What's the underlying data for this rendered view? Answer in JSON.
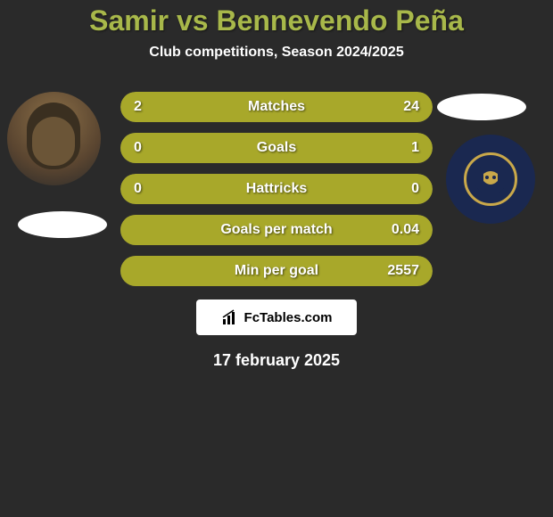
{
  "comparison": {
    "title": "Samir vs Bennevendo Peña",
    "subtitle": "Club competitions, Season 2024/2025",
    "player_left": {
      "name": "Samir",
      "avatar_bg": "#5a4530"
    },
    "player_right": {
      "name": "Bennevendo Peña",
      "club_badge_bg": "#1a2850",
      "club_badge_accent": "#c9a84a"
    },
    "stats": [
      {
        "label": "Matches",
        "left_value": "2",
        "right_value": "24",
        "left_pct": 8,
        "right_pct": 92,
        "fill_color": "#a8a82a"
      },
      {
        "label": "Goals",
        "left_value": "0",
        "right_value": "1",
        "left_pct": 0,
        "right_pct": 100,
        "fill_color": "#a8a82a"
      },
      {
        "label": "Hattricks",
        "left_value": "0",
        "right_value": "0",
        "left_pct": 100,
        "right_pct": 0,
        "fill_color": "#a8a82a"
      },
      {
        "label": "Goals per match",
        "left_value": "",
        "right_value": "0.04",
        "left_pct": 0,
        "right_pct": 100,
        "fill_color": "#a8a82a"
      },
      {
        "label": "Min per goal",
        "left_value": "",
        "right_value": "2557",
        "left_pct": 0,
        "right_pct": 100,
        "fill_color": "#a8a82a"
      }
    ],
    "watermark": "FcTables.com",
    "date": "17 february 2025",
    "colors": {
      "background": "#2a2a2a",
      "title": "#a8b84a",
      "text": "#ffffff",
      "bar_track": "#4a4a4a",
      "bar_fill": "#a8a82a"
    }
  }
}
